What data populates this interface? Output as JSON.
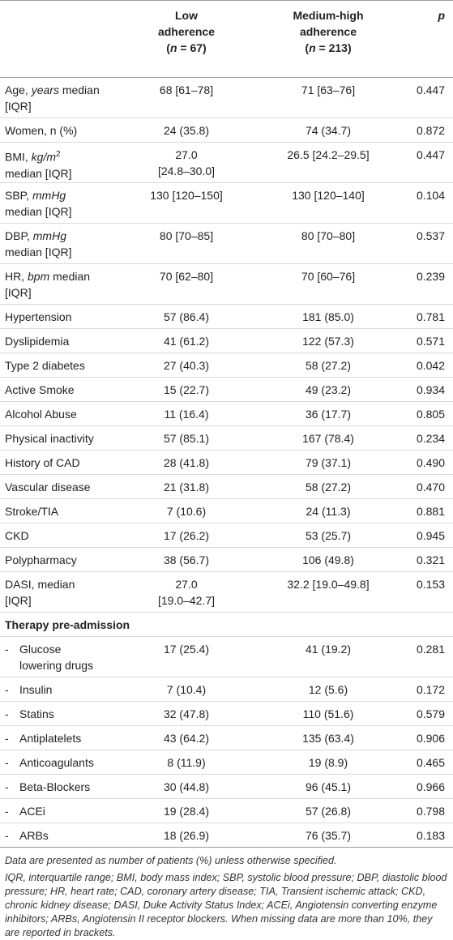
{
  "header": {
    "col1_line1": "Low",
    "col1_line2": "adherence",
    "col1_n": "(n = 67)",
    "col2_line1": "Medium-high",
    "col2_line2": "adherence",
    "col2_n": "(n = 213)",
    "col3": "p"
  },
  "rows": [
    {
      "label_a": "Age, ",
      "label_i": "years",
      "label_b": " median",
      "label_c": "[IQR]",
      "v1": "68 [61–78]",
      "v2": "71 [63–76]",
      "p": "0.447"
    },
    {
      "label": "Women, n (%)",
      "v1": "24 (35.8)",
      "v2": "74 (34.7)",
      "p": "0.872"
    },
    {
      "label_a": "BMI, ",
      "label_i": "kg/m",
      "label_sup": "2",
      "label_c": "median [IQR]",
      "v1a": "27.0",
      "v1b": "[24.8–30.0]",
      "v2": "26.5 [24.2–29.5]",
      "p": "0.447"
    },
    {
      "label_a": "SBP, ",
      "label_i": "mmHg",
      "label_c": "median [IQR]",
      "v1": "130 [120–150]",
      "v2": "130 [120–140]",
      "p": "0.104"
    },
    {
      "label_a": "DBP, ",
      "label_i": "mmHg",
      "label_c": "median [IQR]",
      "v1": "80 [70–85]",
      "v2": "80 [70–80]",
      "p": "0.537"
    },
    {
      "label_a": "HR, ",
      "label_i": "bpm",
      "label_b": " median",
      "label_c": "[IQR]",
      "v1": "70 [62–80]",
      "v2": "70 [60–76]",
      "p": "0.239"
    },
    {
      "label": "Hypertension",
      "v1": "57 (86.4)",
      "v2": "181 (85.0)",
      "p": "0.781"
    },
    {
      "label": "Dyslipidemia",
      "v1": "41 (61.2)",
      "v2": "122 (57.3)",
      "p": "0.571"
    },
    {
      "label": "Type 2 diabetes",
      "v1": "27 (40.3)",
      "v2": "58 (27.2)",
      "p": "0.042"
    },
    {
      "label": "Active Smoke",
      "v1": "15 (22.7)",
      "v2": "49 (23.2)",
      "p": "0.934"
    },
    {
      "label": "Alcohol Abuse",
      "v1": "11 (16.4)",
      "v2": "36 (17.7)",
      "p": "0.805"
    },
    {
      "label": "Physical inactivity",
      "v1": "57 (85.1)",
      "v2": "167 (78.4)",
      "p": "0.234"
    },
    {
      "label": "History of CAD",
      "v1": "28 (41.8)",
      "v2": "79 (37.1)",
      "p": "0.490"
    },
    {
      "label": "Vascular disease",
      "v1": "21 (31.8)",
      "v2": "58 (27.2)",
      "p": "0.470"
    },
    {
      "label": "Stroke/TIA",
      "v1": "7 (10.6)",
      "v2": "24 (11.3)",
      "p": "0.881"
    },
    {
      "label": "CKD",
      "v1": "17 (26.2)",
      "v2": "53 (25.7)",
      "p": "0.945"
    },
    {
      "label": "Polypharmacy",
      "v1": "38 (56.7)",
      "v2": "106 (49.8)",
      "p": "0.321"
    },
    {
      "label_a": "DASI, median",
      "label_c": "[IQR]",
      "v1a": "27.0",
      "v1b": "[19.0–42.7]",
      "v2": "32.2 [19.0–49.8]",
      "p": "0.153"
    }
  ],
  "section_title": "Therapy pre-admission",
  "therapy": [
    {
      "dash": "-",
      "label_a": "Glucose",
      "label_c": "lowering drugs",
      "v1": "17 (25.4)",
      "v2": "41 (19.2)",
      "p": "0.281"
    },
    {
      "dash": "-",
      "label": "Insulin",
      "v1": "7 (10.4)",
      "v2": "12 (5.6)",
      "p": "0.172"
    },
    {
      "dash": "-",
      "label": "Statins",
      "v1": "32 (47.8)",
      "v2": "110 (51.6)",
      "p": "0.579"
    },
    {
      "dash": "-",
      "label": "Antiplatelets",
      "v1": "43 (64.2)",
      "v2": "135 (63.4)",
      "p": "0.906"
    },
    {
      "dash": "-",
      "label": "Anticoagulants",
      "v1": "8 (11.9)",
      "v2": "19 (8.9)",
      "p": "0.465"
    },
    {
      "dash": "-",
      "label": "Beta-Blockers",
      "v1": "30 (44.8)",
      "v2": "96 (45.1)",
      "p": "0.966"
    },
    {
      "dash": "-",
      "label": "ACEi",
      "v1": "19 (28.4)",
      "v2": "57 (26.8)",
      "p": "0.798"
    },
    {
      "dash": "-",
      "label": "ARBs",
      "v1": "18 (26.9)",
      "v2": "76 (35.7)",
      "p": "0.183"
    }
  ],
  "footnote1": "Data are presented as number of patients (%) unless otherwise specified.",
  "footnote2": "IQR, interquartile range; BMI, body mass index; SBP, systolic blood pressure; DBP, diastolic blood pressure; HR, heart rate; CAD, coronary artery disease; TIA, Transient ischemic attack; CKD, chronic kidney disease; DASI, Duke Activity Status Index; ACEi, Angiotensin converting enzyme inhibitors; ARBs, Angiotensin II receptor blockers. When missing data are more than 10%, they are reported in brackets."
}
